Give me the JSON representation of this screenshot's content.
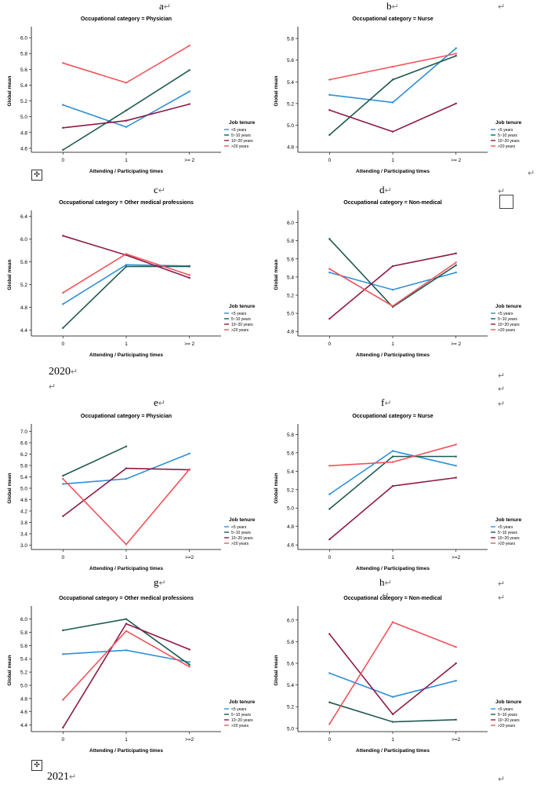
{
  "labels": {
    "a": "a",
    "b": "b",
    "c": "c",
    "d": "d",
    "e": "e",
    "f": "f",
    "g": "g",
    "h": "h",
    "year1": "2020",
    "year2": "2021",
    "para": "↵",
    "cursor": "⋰",
    "move_icon": "✣"
  },
  "chart_data": [
    {
      "id": "a",
      "type": "line",
      "title": "Occupational category = Physician",
      "xlabel": "Attending / Participating times",
      "ylabel": "Global mean",
      "categories": [
        "0",
        "1",
        ">= 2"
      ],
      "ylim": [
        4.55,
        6.1
      ],
      "yticks": [
        "4.6",
        "4.8",
        "5.0",
        "5.2",
        "5.4",
        "5.6",
        "5.8",
        "6.0"
      ],
      "yticks_num": [
        4.6,
        4.8,
        5.0,
        5.2,
        5.4,
        5.6,
        5.8,
        6.0
      ],
      "legend_title": "Job tenure",
      "series": [
        {
          "name": "<5 years",
          "color": "#2f8fd8",
          "values": [
            5.15,
            4.87,
            5.32
          ]
        },
        {
          "name": "5~10 years",
          "color": "#1f5a50",
          "values": [
            4.58,
            5.08,
            5.59
          ]
        },
        {
          "name": "10~20 years",
          "color": "#8e1a47",
          "values": [
            4.86,
            4.95,
            5.16
          ]
        },
        {
          "name": ">20 years",
          "color": "#f2535a",
          "values": [
            5.68,
            5.43,
            5.9
          ]
        }
      ]
    },
    {
      "id": "b",
      "type": "line",
      "title": "Occupational category = Nurse",
      "xlabel": "Attending / Participating times",
      "ylabel": "Global mean",
      "categories": [
        "0",
        "1",
        ">= 2"
      ],
      "ylim": [
        4.75,
        5.88
      ],
      "yticks": [
        "4.8",
        "5.0",
        "5.2",
        "5.4",
        "5.6",
        "5.8"
      ],
      "yticks_num": [
        4.8,
        5.0,
        5.2,
        5.4,
        5.6,
        5.8
      ],
      "legend_title": "Job tenure",
      "series": [
        {
          "name": "<5 years",
          "color": "#2f8fd8",
          "values": [
            5.28,
            5.21,
            5.71
          ]
        },
        {
          "name": "5~10 years",
          "color": "#1f5a50",
          "values": [
            4.91,
            5.42,
            5.64
          ]
        },
        {
          "name": "10~20 years",
          "color": "#8e1a47",
          "values": [
            5.14,
            4.94,
            5.2
          ]
        },
        {
          "name": ">20 years",
          "color": "#f2535a",
          "values": [
            5.42,
            5.54,
            5.66
          ]
        }
      ]
    },
    {
      "id": "c",
      "type": "line",
      "title": "Occupational category = Other medical professions",
      "xlabel": "Attending / Participating times",
      "ylabel": "Global mean",
      "categories": [
        "0",
        "1",
        ">= 2"
      ],
      "ylim": [
        4.3,
        6.45
      ],
      "yticks": [
        "4.4",
        "4.8",
        "5.2",
        "5.6",
        "6.0",
        "6.4"
      ],
      "yticks_num": [
        4.4,
        4.8,
        5.2,
        5.6,
        6.0,
        6.4
      ],
      "legend_title": "Job tenure",
      "series": [
        {
          "name": "<5 years",
          "color": "#2f8fd8",
          "values": [
            4.86,
            5.55,
            5.53
          ]
        },
        {
          "name": "5~10 years",
          "color": "#1f5a50",
          "values": [
            4.44,
            5.52,
            5.52
          ]
        },
        {
          "name": "10~20 years",
          "color": "#8e1a47",
          "values": [
            6.06,
            5.72,
            5.32
          ]
        },
        {
          "name": ">20 years",
          "color": "#f2535a",
          "values": [
            5.06,
            5.74,
            5.37
          ]
        }
      ]
    },
    {
      "id": "d",
      "type": "line",
      "title": "Occupational category = Non-medical",
      "xlabel": "Attending / Participating times",
      "ylabel": "Global mean",
      "categories": [
        "0",
        "1",
        ">= 2"
      ],
      "ylim": [
        4.75,
        6.1
      ],
      "yticks": [
        "4.8",
        "5.0",
        "5.2",
        "5.4",
        "5.6",
        "5.8",
        "6.0"
      ],
      "yticks_num": [
        4.8,
        5.0,
        5.2,
        5.4,
        5.6,
        5.8,
        6.0
      ],
      "legend_title": "Job tenure",
      "series": [
        {
          "name": "<5 years",
          "color": "#2f8fd8",
          "values": [
            5.45,
            5.26,
            5.45
          ]
        },
        {
          "name": "5~10 years",
          "color": "#1f5a50",
          "values": [
            5.82,
            5.07,
            5.53
          ]
        },
        {
          "name": "10~20 years",
          "color": "#8e1a47",
          "values": [
            4.94,
            5.52,
            5.66
          ]
        },
        {
          "name": ">20 years",
          "color": "#f2535a",
          "values": [
            5.49,
            5.08,
            5.56
          ]
        }
      ]
    },
    {
      "id": "e",
      "type": "line",
      "title": "Occupational category = Physician",
      "xlabel": "Attending / Participating times",
      "ylabel": "Global mean",
      "categories": [
        "0",
        "1",
        ">=2"
      ],
      "ylim": [
        2.85,
        7.15
      ],
      "yticks": [
        "3.0",
        "3.4",
        "3.8",
        "4.2",
        "4.6",
        "5.0",
        "5.4",
        "5.8",
        "6.2",
        "6.6",
        "7.0"
      ],
      "yticks_num": [
        3.0,
        3.4,
        3.8,
        4.2,
        4.6,
        5.0,
        5.4,
        5.8,
        6.2,
        6.6,
        7.0
      ],
      "legend_title": "Job tenure",
      "series": [
        {
          "name": "<5 years",
          "color": "#2f8fd8",
          "values": [
            5.15,
            5.33,
            6.22
          ]
        },
        {
          "name": "5~10 years",
          "color": "#1f5a50",
          "values": [
            5.44,
            6.47,
            null
          ]
        },
        {
          "name": "10~20 years",
          "color": "#8e1a47",
          "values": [
            4.02,
            5.7,
            5.65
          ]
        },
        {
          "name": ">20 years",
          "color": "#f2535a",
          "values": [
            5.33,
            3.03,
            5.67
          ]
        }
      ]
    },
    {
      "id": "f",
      "type": "line",
      "title": "Occupational category = Nurse",
      "xlabel": "Attending / Participating times",
      "ylabel": "Global mean",
      "categories": [
        "0",
        "1",
        ">=2"
      ],
      "ylim": [
        4.55,
        5.88
      ],
      "yticks": [
        "4.6",
        "4.8",
        "5.0",
        "5.2",
        "5.4",
        "5.6",
        "5.8"
      ],
      "yticks_num": [
        4.6,
        4.8,
        5.0,
        5.2,
        5.4,
        5.6,
        5.8
      ],
      "legend_title": "Job tenure",
      "series": [
        {
          "name": "<5 years",
          "color": "#2f8fd8",
          "values": [
            5.15,
            5.62,
            5.46
          ]
        },
        {
          "name": "5~10 years",
          "color": "#1f5a50",
          "values": [
            4.99,
            5.56,
            5.56
          ]
        },
        {
          "name": "10~20 years",
          "color": "#8e1a47",
          "values": [
            4.66,
            5.24,
            5.33
          ]
        },
        {
          "name": ">20 years",
          "color": "#f2535a",
          "values": [
            5.46,
            5.5,
            5.69
          ]
        }
      ]
    },
    {
      "id": "g",
      "type": "line",
      "title": "Occupational category = Other medical professions",
      "xlabel": "Attending / Participating times",
      "ylabel": "Global mean",
      "categories": [
        "0",
        "1",
        ">=2"
      ],
      "ylim": [
        4.3,
        6.15
      ],
      "yticks": [
        "4.4",
        "4.6",
        "4.8",
        "5.0",
        "5.2",
        "5.4",
        "5.6",
        "5.8",
        "6.0"
      ],
      "yticks_num": [
        4.4,
        4.6,
        4.8,
        5.0,
        5.2,
        5.4,
        5.6,
        5.8,
        6.0
      ],
      "legend_title": "Job tenure",
      "series": [
        {
          "name": "<5 years",
          "color": "#2f8fd8",
          "values": [
            5.47,
            5.53,
            5.35
          ]
        },
        {
          "name": "5~10 years",
          "color": "#1f5a50",
          "values": [
            5.83,
            6.0,
            5.31
          ]
        },
        {
          "name": "10~20 years",
          "color": "#8e1a47",
          "values": [
            4.36,
            5.93,
            5.54
          ]
        },
        {
          "name": ">20 years",
          "color": "#f2535a",
          "values": [
            4.78,
            5.82,
            5.28
          ]
        }
      ]
    },
    {
      "id": "h",
      "type": "line",
      "title": "Occupational category = Non-medical",
      "xlabel": "Attending / Participating times",
      "ylabel": "Global mean",
      "categories": [
        "0",
        "1",
        ">=2"
      ],
      "ylim": [
        4.97,
        6.1
      ],
      "yticks": [
        "5.0",
        "5.2",
        "5.4",
        "5.6",
        "5.8",
        "6.0"
      ],
      "yticks_num": [
        5.0,
        5.2,
        5.4,
        5.6,
        5.8,
        6.0
      ],
      "legend_title": "Job tenure",
      "series": [
        {
          "name": "<5 years",
          "color": "#2f8fd8",
          "values": [
            5.51,
            5.29,
            5.44
          ]
        },
        {
          "name": "5~10 years",
          "color": "#1f5a50",
          "values": [
            5.24,
            5.06,
            5.08
          ]
        },
        {
          "name": "10~20 years",
          "color": "#8e1a47",
          "values": [
            5.87,
            5.13,
            5.6
          ]
        },
        {
          "name": ">20 years",
          "color": "#f2535a",
          "values": [
            5.04,
            5.98,
            5.75
          ]
        }
      ]
    }
  ]
}
